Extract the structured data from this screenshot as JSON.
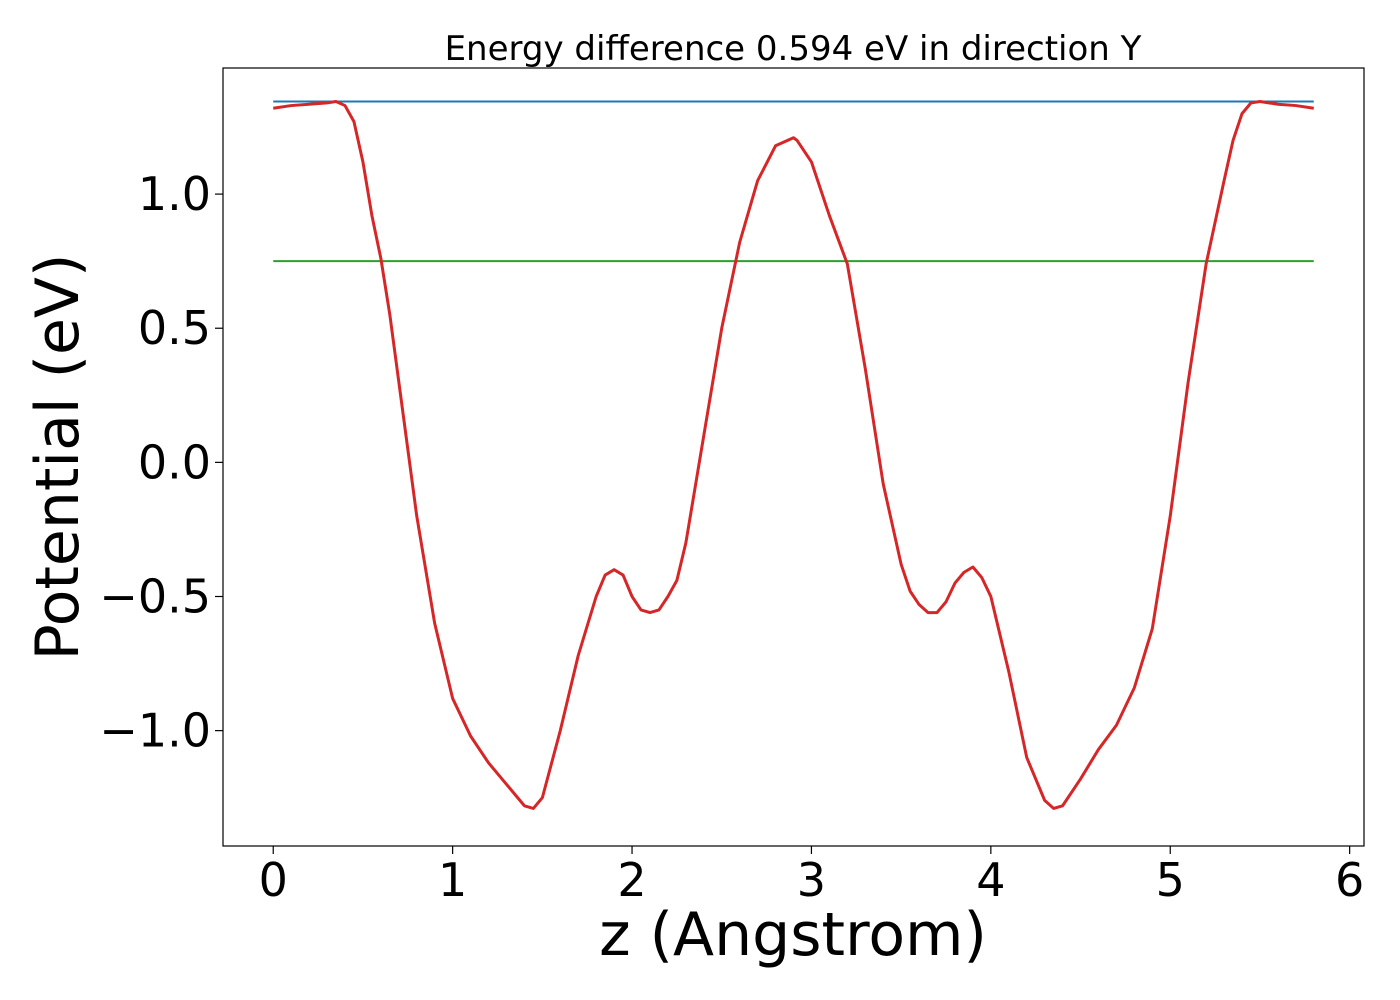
{
  "chart_data": {
    "type": "line",
    "title": "Energy difference 0.594 eV in direction Y",
    "xlabel": "z (Angstrom)",
    "ylabel": "Potential (eV)",
    "xlim": [
      -0.28,
      6.08
    ],
    "ylim": [
      -1.43,
      1.47
    ],
    "xticks": [
      0,
      1,
      2,
      3,
      4,
      5,
      6
    ],
    "xtick_labels": [
      "0",
      "1",
      "2",
      "3",
      "4",
      "5",
      "6"
    ],
    "yticks": [
      -1.0,
      -0.5,
      0.0,
      0.5,
      1.0
    ],
    "ytick_labels": [
      "−1.0",
      "−0.5",
      "0.0",
      "0.5",
      "1.0"
    ],
    "grid": false,
    "series": [
      {
        "color": "#d62728",
        "x": [
          0.0,
          0.1,
          0.2,
          0.3,
          0.35,
          0.4,
          0.45,
          0.5,
          0.55,
          0.6,
          0.65,
          0.7,
          0.8,
          0.9,
          1.0,
          1.1,
          1.2,
          1.3,
          1.4,
          1.45,
          1.5,
          1.6,
          1.7,
          1.8,
          1.85,
          1.9,
          1.95,
          2.0,
          2.05,
          2.1,
          2.15,
          2.2,
          2.25,
          2.3,
          2.4,
          2.5,
          2.6,
          2.7,
          2.8,
          2.9,
          2.92,
          3.0,
          3.1,
          3.2,
          3.3,
          3.4,
          3.5,
          3.55,
          3.6,
          3.65,
          3.7,
          3.75,
          3.8,
          3.85,
          3.9,
          3.95,
          4.0,
          4.1,
          4.2,
          4.3,
          4.35,
          4.4,
          4.5,
          4.6,
          4.7,
          4.8,
          4.9,
          5.0,
          5.1,
          5.2,
          5.3,
          5.35,
          5.4,
          5.45,
          5.5,
          5.6,
          5.7,
          5.8
        ],
        "y": [
          1.32,
          1.33,
          1.335,
          1.34,
          1.345,
          1.33,
          1.27,
          1.12,
          0.92,
          0.76,
          0.55,
          0.3,
          -0.2,
          -0.6,
          -0.88,
          -1.02,
          -1.12,
          -1.2,
          -1.28,
          -1.29,
          -1.25,
          -1.0,
          -0.72,
          -0.5,
          -0.42,
          -0.4,
          -0.42,
          -0.5,
          -0.55,
          -0.56,
          -0.55,
          -0.5,
          -0.44,
          -0.3,
          0.1,
          0.5,
          0.82,
          1.05,
          1.18,
          1.21,
          1.2,
          1.12,
          0.92,
          0.74,
          0.35,
          -0.08,
          -0.38,
          -0.48,
          -0.53,
          -0.56,
          -0.56,
          -0.52,
          -0.45,
          -0.41,
          -0.39,
          -0.43,
          -0.5,
          -0.78,
          -1.1,
          -1.26,
          -1.29,
          -1.28,
          -1.18,
          -1.07,
          -0.98,
          -0.84,
          -0.62,
          -0.2,
          0.3,
          0.74,
          1.05,
          1.2,
          1.3,
          1.34,
          1.345,
          1.335,
          1.33,
          1.32
        ]
      },
      {
        "color": "#1f77b4",
        "x": [
          0.0,
          5.8
        ],
        "y": [
          1.345,
          1.345
        ]
      },
      {
        "color": "#2ca02c",
        "x": [
          0.0,
          5.8
        ],
        "y": [
          0.75,
          0.75
        ]
      }
    ]
  }
}
